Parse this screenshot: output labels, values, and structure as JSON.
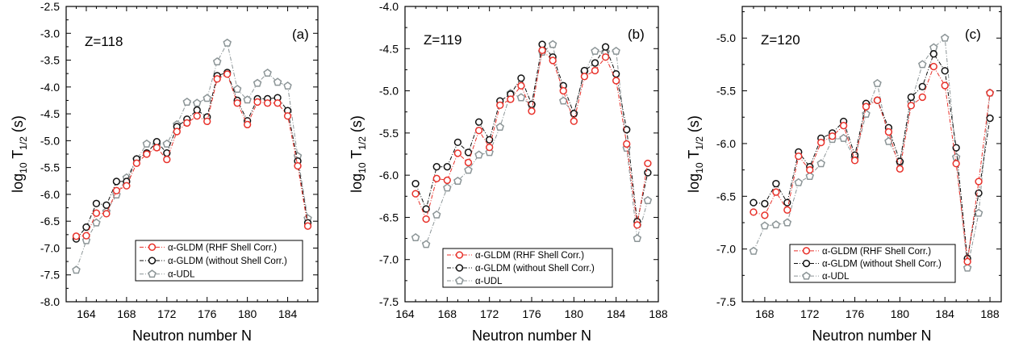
{
  "chart_data": [
    {
      "type": "line",
      "panel_label": "(a)",
      "annotation": "Z=118",
      "xlabel": "Neutron number N",
      "ylabel_main": "log",
      "ylabel_sub": "10",
      "ylabel_T": " T",
      "ylabel_Tsub": "1/2",
      "ylabel_unit": " (s)",
      "xlim": [
        162,
        187
      ],
      "ylim": [
        -8.0,
        -2.5
      ],
      "xticks": [
        164,
        168,
        172,
        176,
        180,
        184
      ],
      "yticks": [
        -8.0,
        -7.5,
        -7.0,
        -6.5,
        -6.0,
        -5.5,
        -5.0,
        -4.5,
        -4.0,
        -3.5,
        -3.0,
        -2.5
      ],
      "ytick_labels": [
        "-8.0",
        "-7.5",
        "-7.0",
        "-6.5",
        "-6.0",
        "-5.5",
        "-5.0",
        "-4.5",
        "-4.0",
        "-3.5",
        "-3.0",
        "-2.5"
      ],
      "legend_position": "bottom-center",
      "series": [
        {
          "name": "α-GLDM (RHF Shell Corr.)",
          "color": "#e8312a",
          "marker": "circle",
          "x": [
            163,
            164,
            165,
            166,
            167,
            168,
            169,
            170,
            171,
            172,
            173,
            174,
            175,
            176,
            177,
            178,
            179,
            180,
            181,
            182,
            183,
            184,
            185,
            186
          ],
          "y": [
            -6.78,
            -6.77,
            -6.35,
            -6.36,
            -5.93,
            -5.84,
            -5.42,
            -5.25,
            -5.13,
            -5.35,
            -4.83,
            -4.67,
            -4.54,
            -4.64,
            -3.85,
            -3.76,
            -4.3,
            -4.7,
            -4.28,
            -4.3,
            -4.3,
            -4.54,
            -5.47,
            -6.59
          ]
        },
        {
          "name": "α-GLDM (without Shell Corr.)",
          "color": "#111111",
          "marker": "circle",
          "x": [
            163,
            164,
            165,
            166,
            167,
            168,
            169,
            170,
            171,
            172,
            173,
            174,
            175,
            176,
            177,
            178,
            179,
            180,
            181,
            182,
            183,
            184,
            185,
            186
          ],
          "y": [
            -6.83,
            -6.61,
            -6.17,
            -6.2,
            -5.76,
            -5.76,
            -5.34,
            -5.23,
            -5.02,
            -5.23,
            -4.74,
            -4.6,
            -4.43,
            -4.56,
            -3.79,
            -3.73,
            -4.25,
            -4.63,
            -4.22,
            -4.22,
            -4.2,
            -4.44,
            -5.38,
            -6.53
          ]
        },
        {
          "name": "α-UDL",
          "color": "#8c9597",
          "marker": "pentagon",
          "x": [
            163,
            164,
            165,
            166,
            167,
            168,
            169,
            170,
            171,
            172,
            173,
            174,
            175,
            176,
            177,
            178,
            179,
            180,
            181,
            182,
            183,
            184,
            185,
            186
          ],
          "y": [
            -7.41,
            -6.86,
            -6.53,
            -6.32,
            -6.01,
            -5.69,
            -5.35,
            -5.06,
            -5.07,
            -5.06,
            -4.7,
            -4.28,
            -4.3,
            -4.21,
            -3.53,
            -3.18,
            -4.04,
            -4.24,
            -3.93,
            -3.74,
            -3.91,
            -3.98,
            -5.29,
            -6.45
          ]
        }
      ]
    },
    {
      "type": "line",
      "panel_label": "(b)",
      "annotation": "Z=119",
      "xlabel": "Neutron number N",
      "ylabel_main": "log",
      "ylabel_sub": "10",
      "ylabel_T": " T",
      "ylabel_Tsub": "1/2",
      "ylabel_unit": " (s)",
      "xlim": [
        164,
        188
      ],
      "ylim": [
        -7.5,
        -4.0
      ],
      "xticks": [
        164,
        168,
        172,
        176,
        180,
        184,
        188
      ],
      "yticks": [
        -7.5,
        -7.0,
        -6.5,
        -6.0,
        -5.5,
        -5.0,
        -4.5,
        -4.0
      ],
      "ytick_labels": [
        "-7.5",
        "-7.0",
        "-6.5",
        "-6.0",
        "-5.5",
        "-5.0",
        "-4.5",
        "-4.0"
      ],
      "legend_position": "bottom-center",
      "series": [
        {
          "name": "α-GLDM (RHF Shell Corr.)",
          "color": "#e8312a",
          "marker": "circle",
          "x": [
            165,
            166,
            167,
            168,
            169,
            170,
            171,
            172,
            173,
            174,
            175,
            176,
            177,
            178,
            179,
            180,
            181,
            182,
            183,
            184,
            185,
            186,
            187
          ],
          "y": [
            -6.22,
            -6.52,
            -6.04,
            -6.06,
            -5.74,
            -5.85,
            -5.47,
            -5.67,
            -5.17,
            -5.1,
            -4.94,
            -5.24,
            -4.52,
            -4.64,
            -5.0,
            -5.36,
            -4.83,
            -4.76,
            -4.6,
            -4.88,
            -5.63,
            -6.59,
            -5.86
          ]
        },
        {
          "name": "α-GLDM (without Shell Corr.)",
          "color": "#111111",
          "marker": "circle",
          "x": [
            165,
            166,
            167,
            168,
            169,
            170,
            171,
            172,
            173,
            174,
            175,
            176,
            177,
            178,
            179,
            180,
            181,
            182,
            183,
            184,
            185,
            186,
            187
          ],
          "y": [
            -6.1,
            -6.4,
            -5.9,
            -5.9,
            -5.61,
            -5.73,
            -5.37,
            -5.58,
            -5.12,
            -5.04,
            -4.85,
            -5.16,
            -4.45,
            -4.6,
            -4.94,
            -5.27,
            -4.76,
            -4.67,
            -4.48,
            -4.8,
            -5.46,
            -6.55,
            -5.97
          ]
        },
        {
          "name": "α-UDL",
          "color": "#8c9597",
          "marker": "pentagon",
          "x": [
            165,
            166,
            167,
            168,
            169,
            170,
            171,
            172,
            173,
            174,
            175,
            176,
            177,
            178,
            179,
            180,
            181,
            182,
            183,
            184,
            185,
            186,
            187
          ],
          "y": [
            -6.74,
            -6.82,
            -6.47,
            -6.15,
            -6.07,
            -5.94,
            -5.76,
            -5.73,
            -5.43,
            -5.03,
            -5.08,
            -5.17,
            -4.54,
            -4.45,
            -5.12,
            -5.27,
            -4.78,
            -4.53,
            -4.54,
            -4.53,
            -5.68,
            -6.75,
            -6.3
          ]
        }
      ]
    },
    {
      "type": "line",
      "panel_label": "(c)",
      "annotation": "Z=120",
      "xlabel": "Neutron number N",
      "ylabel_main": "log",
      "ylabel_sub": "10",
      "ylabel_T": " T",
      "ylabel_Tsub": "1/2",
      "ylabel_unit": " (s)",
      "xlim": [
        166,
        189
      ],
      "ylim": [
        -7.5,
        -4.7
      ],
      "xticks": [
        168,
        172,
        176,
        180,
        184,
        188
      ],
      "yticks": [
        -7.5,
        -7.0,
        -6.5,
        -6.0,
        -5.5,
        -5.0
      ],
      "ytick_labels": [
        "-7.5",
        "-7.0",
        "-6.5",
        "-6.0",
        "-5.5",
        "-5.0"
      ],
      "legend_position": "bottom-center",
      "series": [
        {
          "name": "α-GLDM (RHF Shell Corr.)",
          "color": "#e8312a",
          "marker": "circle",
          "x": [
            167,
            168,
            169,
            170,
            171,
            172,
            173,
            174,
            175,
            176,
            177,
            178,
            179,
            180,
            181,
            182,
            183,
            184,
            185,
            186,
            187,
            188
          ],
          "y": [
            -6.65,
            -6.68,
            -6.46,
            -6.63,
            -6.12,
            -6.25,
            -5.99,
            -5.93,
            -5.83,
            -6.16,
            -5.65,
            -5.59,
            -5.89,
            -6.24,
            -5.64,
            -5.56,
            -5.27,
            -5.45,
            -6.19,
            -7.12,
            -6.36,
            -5.52
          ]
        },
        {
          "name": "α-GLDM (without Shell Corr.)",
          "color": "#111111",
          "marker": "circle",
          "x": [
            167,
            168,
            169,
            170,
            171,
            172,
            173,
            174,
            175,
            176,
            177,
            178,
            179,
            180,
            181,
            182,
            183,
            184,
            185,
            186,
            187,
            188
          ],
          "y": [
            -6.56,
            -6.57,
            -6.38,
            -6.56,
            -6.08,
            -6.22,
            -5.95,
            -5.9,
            -5.79,
            -6.11,
            -5.62,
            -5.59,
            -5.85,
            -6.17,
            -5.56,
            -5.46,
            -5.15,
            -5.31,
            -6.04,
            -7.09,
            -6.47,
            -5.76
          ]
        },
        {
          "name": "α-UDL",
          "color": "#8c9597",
          "marker": "pentagon",
          "x": [
            167,
            168,
            169,
            170,
            171,
            172,
            173,
            174,
            175,
            176,
            177,
            178,
            179,
            180,
            181,
            182,
            183,
            184,
            185,
            186,
            187,
            188
          ],
          "y": [
            -7.02,
            -6.78,
            -6.77,
            -6.75,
            -6.37,
            -6.31,
            -6.19,
            -5.96,
            -5.95,
            -6.14,
            -5.72,
            -5.43,
            -5.98,
            -6.18,
            -5.61,
            -5.25,
            -5.09,
            -5.0,
            -6.13,
            -7.18,
            -6.66,
            -5.52
          ]
        }
      ]
    }
  ]
}
